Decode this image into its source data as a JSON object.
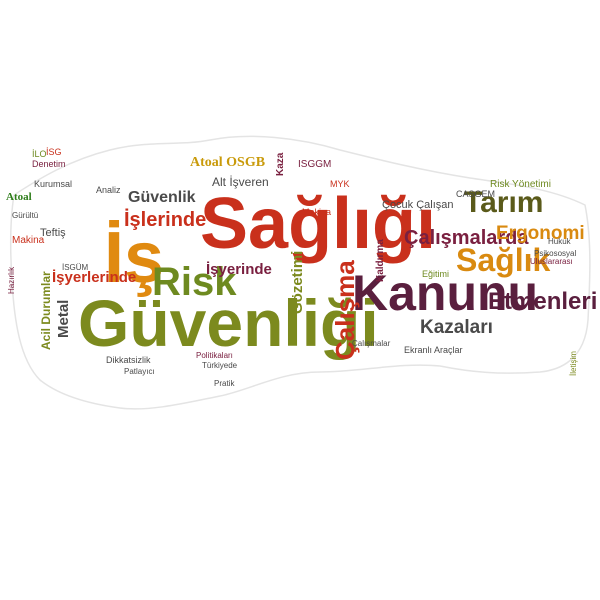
{
  "brand": {
    "name_short": "Atoal",
    "name_full": "Atoal OSGB",
    "color": "#c99a0a",
    "short_color": "#2e7d1a"
  },
  "words": [
    {
      "text": "Güvenliği",
      "color": "#7c8a1e"
    },
    {
      "text": "Sağlığı",
      "color": "#c9301c"
    },
    {
      "text": "İş",
      "color": "#e08a10"
    },
    {
      "text": "Kanunu",
      "color": "#5a1f3e"
    },
    {
      "text": "Risk",
      "color": "#6e8a20"
    },
    {
      "text": "Sağlık",
      "color": "#d98a10"
    },
    {
      "text": "Tarım",
      "color": "#5a5a1a"
    },
    {
      "text": "Etmenleri",
      "color": "#5a1f3e"
    },
    {
      "text": "Çalışmalarda",
      "color": "#7a2040"
    },
    {
      "text": "İşlerinde",
      "color": "#c9301c"
    },
    {
      "text": "Ergonomi",
      "color": "#d98a10"
    },
    {
      "text": "Kazaları",
      "color": "#4a4a4a"
    },
    {
      "text": "Güvenlik",
      "color": "#4a4a4a"
    },
    {
      "text": "İşyerlerinde",
      "color": "#c9301c"
    },
    {
      "text": "İşyerinde",
      "color": "#7a2040"
    },
    {
      "text": "Çalışma",
      "color": "#c9301c"
    },
    {
      "text": "Gözetimi",
      "color": "#7c8a1e"
    },
    {
      "text": "Metal",
      "color": "#4a4a4a"
    },
    {
      "text": "Acil Durumlar",
      "color": "#7c8a1e"
    },
    {
      "text": "Alt İşveren",
      "color": "#4a4a4a"
    },
    {
      "text": "Çocuk Çalışan",
      "color": "#4a4a4a"
    },
    {
      "text": "Risk Yönetimi",
      "color": "#6e8a20"
    },
    {
      "text": "ISGGM",
      "color": "#7a2040"
    },
    {
      "text": "Kaza",
      "color": "#7a2040"
    },
    {
      "text": "İSG",
      "color": "#c9301c"
    },
    {
      "text": "İLO",
      "color": "#6e8a20"
    },
    {
      "text": "Denetim",
      "color": "#7a2040"
    },
    {
      "text": "Kurumsal",
      "color": "#4a4a4a"
    },
    {
      "text": "Teftiş",
      "color": "#4a4a4a"
    },
    {
      "text": "Makina",
      "color": "#c9301c"
    },
    {
      "text": "Makina",
      "color": "#c9301c"
    },
    {
      "text": "Dikkatsizlik",
      "color": "#4a4a4a"
    },
    {
      "text": "MYK",
      "color": "#c9301c"
    },
    {
      "text": "CASGEM",
      "color": "#4a4a4a"
    },
    {
      "text": "Eğitimi",
      "color": "#6e8a20"
    },
    {
      "text": "Kaldırma",
      "color": "#7a2040"
    },
    {
      "text": "Ekranlı Araçlar",
      "color": "#4a4a4a"
    },
    {
      "text": "İSGÜM",
      "color": "#4a4a4a"
    },
    {
      "text": "Analiz",
      "color": "#4a4a4a"
    },
    {
      "text": "Hazırlık",
      "color": "#7a2040"
    },
    {
      "text": "Patlayıcı",
      "color": "#4a4a4a"
    },
    {
      "text": "Pratik",
      "color": "#4a4a4a"
    },
    {
      "text": "Türkiyede",
      "color": "#4a4a4a"
    },
    {
      "text": "Politikaları",
      "color": "#7a2040"
    },
    {
      "text": "Çalışmalar",
      "color": "#4a4a4a"
    },
    {
      "text": "Gürültü",
      "color": "#4a4a4a"
    },
    {
      "text": "Uluslararası",
      "color": "#7a2040"
    },
    {
      "text": "Psikososyal",
      "color": "#4a4a4a"
    },
    {
      "text": "İletişim",
      "color": "#7c8a1e"
    },
    {
      "text": "Hukuk",
      "color": "#4a4a4a"
    }
  ]
}
